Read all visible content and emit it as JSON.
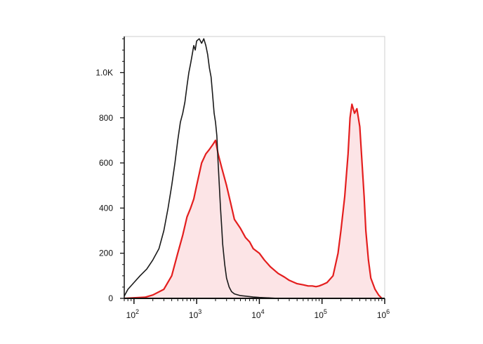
{
  "chart_data": {
    "type": "histogram",
    "x_scale": "log",
    "xlim": [
      70,
      1000000
    ],
    "ylim": [
      0,
      1160
    ],
    "grid": false,
    "legend": "none",
    "x_ticks": [
      {
        "value": 100,
        "base": "10",
        "exp": "2"
      },
      {
        "value": 1000,
        "base": "10",
        "exp": "3"
      },
      {
        "value": 10000,
        "base": "10",
        "exp": "4"
      },
      {
        "value": 100000,
        "base": "10",
        "exp": "5"
      },
      {
        "value": 1000000,
        "base": "10",
        "exp": "6"
      }
    ],
    "y_ticks": [
      {
        "value": 0,
        "label": "0"
      },
      {
        "value": 200,
        "label": "200"
      },
      {
        "value": 400,
        "label": "400"
      },
      {
        "value": 600,
        "label": "600"
      },
      {
        "value": 800,
        "label": "800"
      },
      {
        "value": 1000,
        "label": "1.0K"
      }
    ],
    "series": [
      {
        "color": "#1a1a1a",
        "fill": "none",
        "x": [
          70,
          80,
          100,
          125,
          160,
          200,
          250,
          300,
          350,
          400,
          450,
          500,
          550,
          600,
          650,
          700,
          750,
          800,
          850,
          900,
          950,
          1000,
          1100,
          1200,
          1300,
          1400,
          1500,
          1600,
          1700,
          1800,
          1900,
          2000,
          2100,
          2200,
          2300,
          2400,
          2500,
          2600,
          2800,
          3000,
          3300,
          3600,
          4000,
          5000,
          6000,
          8000,
          10000,
          15000,
          20000
        ],
        "y": [
          10,
          40,
          70,
          100,
          130,
          170,
          220,
          300,
          400,
          500,
          600,
          700,
          780,
          820,
          870,
          940,
          1000,
          1040,
          1080,
          1120,
          1100,
          1140,
          1150,
          1130,
          1150,
          1120,
          1080,
          1020,
          980,
          900,
          820,
          780,
          720,
          600,
          500,
          400,
          320,
          240,
          150,
          90,
          50,
          30,
          20,
          12,
          10,
          6,
          4,
          2,
          0
        ]
      },
      {
        "color": "#e41e1e",
        "fill": "#fce4e6",
        "x": [
          70,
          150,
          200,
          300,
          400,
          500,
          600,
          700,
          800,
          900,
          1000,
          1200,
          1400,
          1600,
          1800,
          2000,
          2200,
          2500,
          3000,
          3500,
          4000,
          5000,
          6000,
          7000,
          8000,
          10000,
          12000,
          15000,
          20000,
          25000,
          30000,
          40000,
          50000,
          60000,
          70000,
          80000,
          90000,
          100000,
          120000,
          150000,
          180000,
          200000,
          230000,
          260000,
          280000,
          300000,
          330000,
          360000,
          400000,
          430000,
          470000,
          500000,
          550000,
          600000,
          700000,
          800000,
          900000
        ],
        "y": [
          0,
          5,
          15,
          40,
          100,
          200,
          280,
          360,
          400,
          440,
          500,
          600,
          640,
          660,
          680,
          700,
          640,
          580,
          500,
          420,
          350,
          310,
          270,
          250,
          220,
          200,
          170,
          140,
          110,
          95,
          80,
          65,
          60,
          55,
          55,
          52,
          55,
          60,
          70,
          100,
          200,
          300,
          450,
          640,
          800,
          860,
          820,
          840,
          760,
          620,
          450,
          300,
          170,
          90,
          40,
          15,
          0
        ]
      }
    ]
  }
}
